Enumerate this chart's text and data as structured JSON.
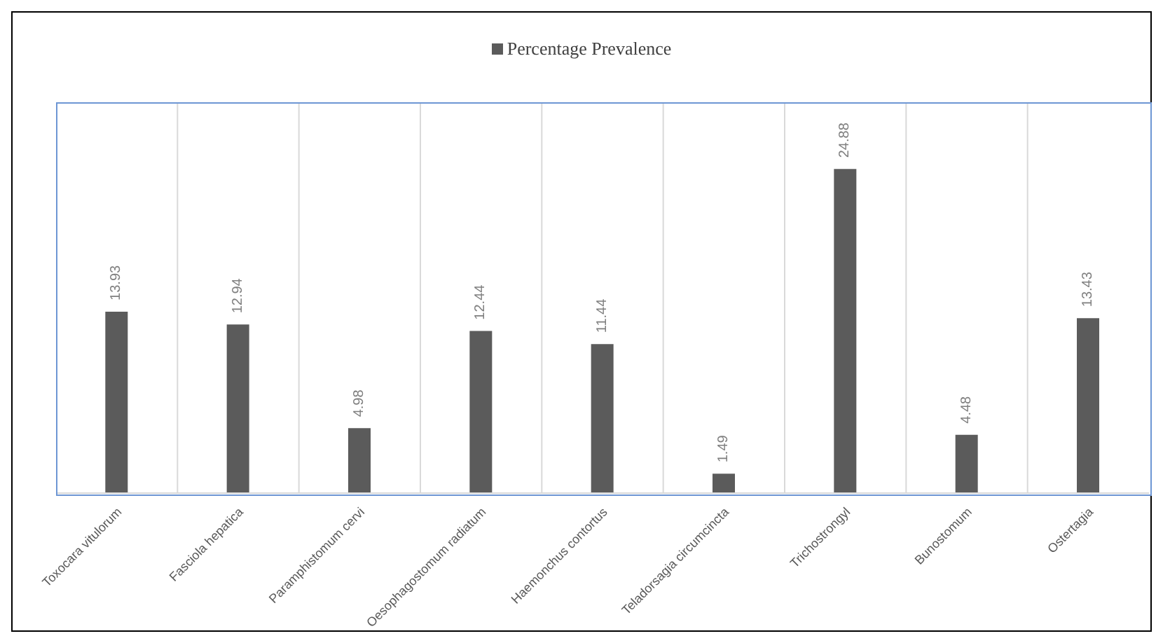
{
  "chart_data": {
    "type": "bar",
    "categories": [
      "Toxocara vitulorum",
      "Fasciola hepatica",
      "Paramphistomum cervi",
      "Oesophagostomum radiatum",
      "Haemonchus contortus",
      "Teladorsagia circumcincta",
      "Trichostrongyl",
      "Bunostomum",
      "Ostertagia"
    ],
    "series": [
      {
        "name": "Percentage Prevalence",
        "color": "#5b5b5b",
        "values": [
          13.93,
          12.94,
          4.98,
          12.44,
          11.44,
          1.49,
          24.88,
          4.48,
          13.43
        ]
      }
    ],
    "ylim": [
      0,
      30
    ],
    "tick_labels": "x",
    "data_labels": true,
    "grid": "x",
    "legend": "top"
  }
}
